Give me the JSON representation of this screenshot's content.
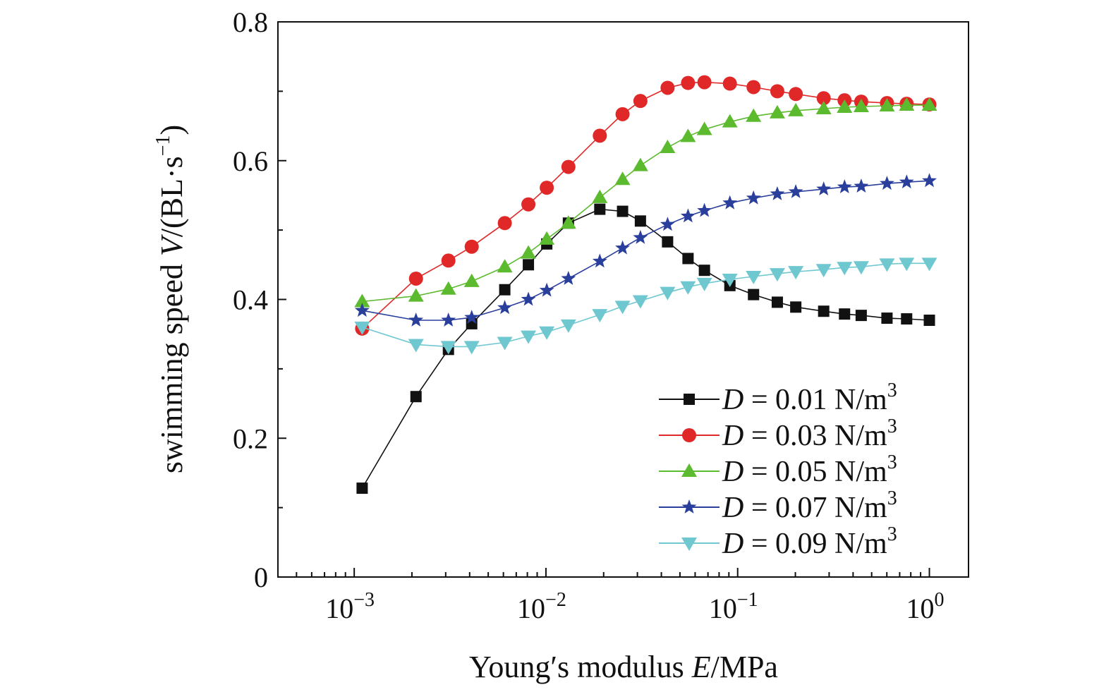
{
  "chart_data": {
    "type": "line",
    "title": "",
    "xlabel_parts": [
      "Young′s modulus ",
      "E",
      "/MPa"
    ],
    "ylabel_parts": [
      "swimming speed ",
      "V",
      "/(BL·s",
      "−1",
      ")"
    ],
    "xscale": "log",
    "xlim": [
      0.0004,
      1.6
    ],
    "ylim": [
      0,
      0.8
    ],
    "xticks": [
      {
        "value": 0.001,
        "base": "10",
        "exp": "−3"
      },
      {
        "value": 0.01,
        "base": "10",
        "exp": "−2"
      },
      {
        "value": 0.1,
        "base": "10",
        "exp": "−1"
      },
      {
        "value": 1,
        "base": "10",
        "exp": "0"
      }
    ],
    "yticks": [
      {
        "value": 0,
        "label": "0"
      },
      {
        "value": 0.2,
        "label": "0.2"
      },
      {
        "value": 0.4,
        "label": "0.4"
      },
      {
        "value": 0.6,
        "label": "0.6"
      },
      {
        "value": 0.8,
        "label": "0.8"
      }
    ],
    "grid": false,
    "legend_position": "bottom-right",
    "x": [
      0.0011,
      0.0021,
      0.0031,
      0.0041,
      0.0061,
      0.0081,
      0.0101,
      0.0131,
      0.0191,
      0.0251,
      0.0311,
      0.0431,
      0.0551,
      0.0671,
      0.0911,
      0.121,
      0.161,
      0.201,
      0.281,
      0.361,
      0.441,
      0.601,
      0.761,
      1.0
    ],
    "series": [
      {
        "legend_var": "D",
        "legend_value": " = 0.01 N/m",
        "legend_exp": "3",
        "color": "#111111",
        "marker": "square",
        "values": [
          0.128,
          0.26,
          0.328,
          0.365,
          0.414,
          0.45,
          0.48,
          0.51,
          0.53,
          0.527,
          0.513,
          0.483,
          0.459,
          0.442,
          0.42,
          0.407,
          0.396,
          0.389,
          0.383,
          0.379,
          0.377,
          0.373,
          0.372,
          0.37
        ]
      },
      {
        "legend_var": "D",
        "legend_value": " = 0.03 N/m",
        "legend_exp": "3",
        "color": "#e02828",
        "marker": "circle",
        "values": [
          0.358,
          0.43,
          0.456,
          0.476,
          0.51,
          0.537,
          0.561,
          0.591,
          0.636,
          0.667,
          0.686,
          0.705,
          0.712,
          0.713,
          0.711,
          0.706,
          0.7,
          0.696,
          0.69,
          0.687,
          0.685,
          0.683,
          0.682,
          0.681
        ]
      },
      {
        "legend_var": "D",
        "legend_value": " = 0.05 N/m",
        "legend_exp": "3",
        "color": "#5cba2e",
        "marker": "triangle-up",
        "values": [
          0.397,
          0.405,
          0.415,
          0.426,
          0.447,
          0.467,
          0.487,
          0.51,
          0.547,
          0.573,
          0.593,
          0.619,
          0.635,
          0.645,
          0.656,
          0.664,
          0.669,
          0.672,
          0.675,
          0.677,
          0.678,
          0.679,
          0.68,
          0.68
        ]
      },
      {
        "legend_var": "D",
        "legend_value": " = 0.07 N/m",
        "legend_exp": "3",
        "color": "#2a3f9c",
        "marker": "star",
        "values": [
          0.384,
          0.37,
          0.37,
          0.374,
          0.388,
          0.4,
          0.413,
          0.43,
          0.455,
          0.474,
          0.489,
          0.508,
          0.52,
          0.528,
          0.539,
          0.546,
          0.552,
          0.555,
          0.559,
          0.562,
          0.563,
          0.567,
          0.569,
          0.571
        ]
      },
      {
        "legend_var": "D",
        "legend_value": " = 0.09 N/m",
        "legend_exp": "3",
        "color": "#6fc8d0",
        "marker": "triangle-down",
        "values": [
          0.36,
          0.335,
          0.332,
          0.332,
          0.338,
          0.347,
          0.353,
          0.363,
          0.378,
          0.39,
          0.398,
          0.41,
          0.418,
          0.423,
          0.429,
          0.433,
          0.437,
          0.44,
          0.443,
          0.446,
          0.447,
          0.451,
          0.452,
          0.452
        ]
      }
    ]
  }
}
